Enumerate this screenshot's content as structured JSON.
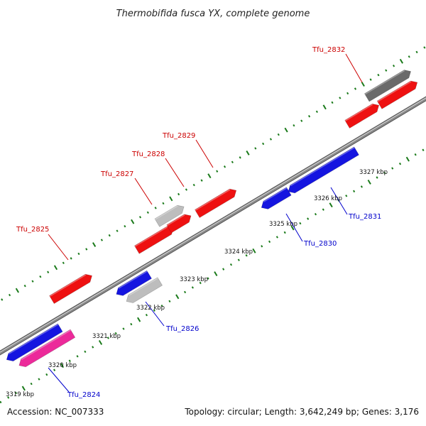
{
  "title": "Thermobifida fusca YX, complete genome",
  "footer": {
    "accession": "Accession: NC_007333",
    "summary": "Topology: circular; Length: 3,642,249 bp; Genes: 3,176"
  },
  "colors": {
    "backbone": "#8a8a8a",
    "forward_gene": "#ee1111",
    "reverse_gene": "#1515e0",
    "grey_feature": "#bdbdbd",
    "dark_feature": "#6a6a6a",
    "pink_feature": "#ec2a9a",
    "tick": "#1a7a1a",
    "forward_label": "#cc0000",
    "reverse_label": "#0000cc"
  },
  "kbp_labels": [
    "3319 kbp",
    "3320 kbp",
    "3321 kbp",
    "3322 kbp",
    "3323 kbp",
    "3324 kbp",
    "3325 kbp",
    "3326 kbp",
    "3327 kbp"
  ],
  "genes": [
    {
      "name": "Tfu_2824",
      "strand": "reverse"
    },
    {
      "name": "Tfu_2825",
      "strand": "forward"
    },
    {
      "name": "Tfu_2826",
      "strand": "reverse"
    },
    {
      "name": "Tfu_2827",
      "strand": "forward"
    },
    {
      "name": "Tfu_2828",
      "strand": "forward"
    },
    {
      "name": "Tfu_2829",
      "strand": "forward"
    },
    {
      "name": "Tfu_2830",
      "strand": "reverse"
    },
    {
      "name": "Tfu_2831",
      "strand": "reverse"
    },
    {
      "name": "Tfu_2832",
      "strand": "forward"
    }
  ]
}
